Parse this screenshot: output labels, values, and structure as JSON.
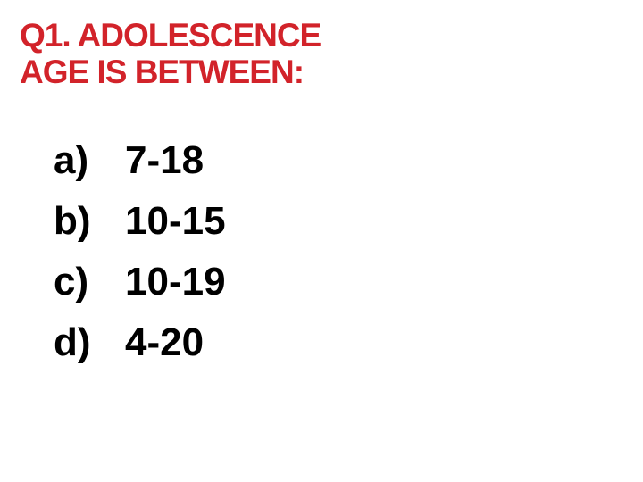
{
  "question": {
    "title_line1": "Q1. ADOLESCENCE",
    "title_line2": "AGE IS BETWEEN:",
    "title_color": "#d2232a",
    "title_fontsize": 37,
    "title_fontweight": 900
  },
  "options": [
    {
      "label": "a)",
      "value": "7-18"
    },
    {
      "label": "b)",
      "value": "10-15"
    },
    {
      "label": "c)",
      "value": "10-19"
    },
    {
      "label": "d)",
      "value": "4-20"
    }
  ],
  "option_style": {
    "color": "#000000",
    "fontsize": 44,
    "fontweight": 700,
    "row_gap": 18
  },
  "background_color": "#ffffff"
}
